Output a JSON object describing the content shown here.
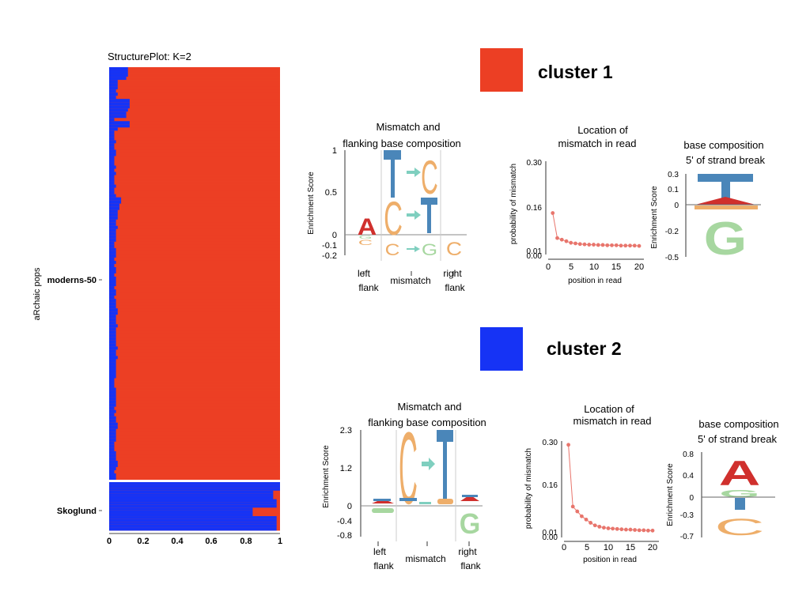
{
  "colors": {
    "red": "#ec3f24",
    "blue": "#1633f5",
    "teal": "#7fcfbf",
    "blueLogo": "#4a86b9",
    "orange": "#eeae6a",
    "green": "#a7d7a0",
    "logoRed": "#d0302d",
    "dot": "#e8756c"
  },
  "structure": {
    "title": "StructurePlot: K=2",
    "ylabel": "aRchaic pops",
    "groups": [
      "moderns-50",
      "Skoglund"
    ],
    "xticks": [
      "0",
      "0.2",
      "0.4",
      "0.6",
      "0.8",
      "1"
    ]
  },
  "clusters": [
    {
      "label": "cluster 1",
      "color": "#ec3f24"
    },
    {
      "label": "cluster 2",
      "color": "#1633f5"
    }
  ],
  "mismatch_panels": [
    {
      "title1": "Mismatch and",
      "title2": "flanking base composition",
      "ylabel": "Enrichment Score",
      "yticks": [
        "1",
        "0.5",
        "0",
        "-0.1",
        "-0.2"
      ],
      "xlabels": [
        "left",
        "flank",
        "mismatch",
        "right",
        "flank"
      ],
      "logos": [
        "A",
        "C",
        "C",
        "T",
        "C",
        "G",
        "C",
        "C",
        "G"
      ]
    },
    {
      "title1": "Mismatch and",
      "title2": "flanking base composition",
      "ylabel": "Enrichment Score",
      "yticks": [
        "2.3",
        "1.2",
        "0",
        "-0.4",
        "-0.8"
      ],
      "xlabels": [
        "left",
        "flank",
        "mismatch",
        "right",
        "flank"
      ],
      "logos": [
        "C",
        "G",
        "G"
      ]
    }
  ],
  "location_panels": [
    {
      "title1": "Location of",
      "title2": "mismatch in read",
      "ylabel": "probability of mismatch",
      "xlabel": "position in read",
      "yticks": [
        "0.30",
        "0.16",
        "0.01",
        "0.00"
      ],
      "xticks": [
        "0",
        "5",
        "10",
        "15",
        "20"
      ]
    },
    {
      "title1": "Location of",
      "title2": "mismatch in read",
      "ylabel": "probability of mismatch",
      "xlabel": "position in read",
      "yticks": [
        "0.30",
        "0.16",
        "0.01",
        "0.00"
      ],
      "xticks": [
        "0",
        "5",
        "10",
        "15",
        "20"
      ]
    }
  ],
  "base_panels": [
    {
      "title1": "base composition",
      "title2": "5' of  strand break",
      "ylabel": "Enrichment Score",
      "yticks": [
        "0.3",
        "0.1",
        "0",
        "-0.2",
        "-0.5"
      ],
      "logos": [
        "T",
        "G"
      ]
    },
    {
      "title1": "base composition",
      "title2": "5' of  strand break",
      "ylabel": "Enrichment Score",
      "yticks": [
        "0.8",
        "0.4",
        "0",
        "-0.3",
        "-0.7"
      ],
      "logos": [
        "A",
        "G",
        "C"
      ]
    }
  ],
  "chart_data": [
    {
      "type": "bar",
      "title": "StructurePlot: K=2",
      "orientation": "horizontal-stacked",
      "xlim": [
        0,
        1
      ],
      "groups": [
        {
          "name": "moderns-50",
          "cluster2_fraction": [
            0.11,
            0.11,
            0.11,
            0.1,
            0.05,
            0.05,
            0.05,
            0.04,
            0.05,
            0.04,
            0.12,
            0.12,
            0.12,
            0.11,
            0.1,
            0.1,
            0.03,
            0.12,
            0.12,
            0.05,
            0.03,
            0.03,
            0.03,
            0.04,
            0.03,
            0.03,
            0.04,
            0.04,
            0.03,
            0.03,
            0.03,
            0.04,
            0.03,
            0.04,
            0.03,
            0.03,
            0.03,
            0.04,
            0.03,
            0.03,
            0.04,
            0.07,
            0.07,
            0.06,
            0.06,
            0.05,
            0.05,
            0.05,
            0.04,
            0.04,
            0.05,
            0.04,
            0.04,
            0.04,
            0.04,
            0.03,
            0.03,
            0.04,
            0.04,
            0.04,
            0.03,
            0.04,
            0.03,
            0.04,
            0.04,
            0.03,
            0.04,
            0.04,
            0.04,
            0.03,
            0.04,
            0.04,
            0.03,
            0.04,
            0.04,
            0.04,
            0.05,
            0.05,
            0.04,
            0.04,
            0.04,
            0.05,
            0.04,
            0.04,
            0.04,
            0.04,
            0.04,
            0.04,
            0.05,
            0.04,
            0.04,
            0.05,
            0.04,
            0.04,
            0.04,
            0.04,
            0.04,
            0.04,
            0.03,
            0.03,
            0.03,
            0.04,
            0.04,
            0.04,
            0.04,
            0.04,
            0.04,
            0.03,
            0.04,
            0.03,
            0.04,
            0.04,
            0.05,
            0.05,
            0.04,
            0.04,
            0.04,
            0.04,
            0.03,
            0.03,
            0.03,
            0.04,
            0.04,
            0.04,
            0.05,
            0.05,
            0.04,
            0.03,
            0.04,
            0.04
          ]
        },
        {
          "name": "Skoglund",
          "cluster2_fraction": [
            1,
            1,
            1,
            0.96,
            0.96,
            0.96,
            0.98,
            0.98,
            0.98,
            0.84,
            0.84,
            0.84,
            0.98,
            0.98,
            0.98,
            0.98,
            0.98
          ]
        }
      ]
    },
    {
      "type": "line",
      "title": "Location of mismatch in read (cluster 1)",
      "xlabel": "position in read",
      "ylabel": "probability of mismatch",
      "ylim": [
        0,
        0.3
      ],
      "x": [
        1,
        2,
        3,
        4,
        5,
        6,
        7,
        8,
        9,
        10,
        11,
        12,
        13,
        14,
        15,
        16,
        17,
        18,
        19,
        20
      ],
      "y": [
        0.14,
        0.06,
        0.055,
        0.05,
        0.045,
        0.043,
        0.041,
        0.04,
        0.039,
        0.039,
        0.038,
        0.038,
        0.037,
        0.037,
        0.037,
        0.036,
        0.036,
        0.036,
        0.036,
        0.035
      ]
    },
    {
      "type": "line",
      "title": "Location of mismatch in read (cluster 2)",
      "xlabel": "position in read",
      "ylabel": "probability of mismatch",
      "ylim": [
        0,
        0.3
      ],
      "x": [
        1,
        2,
        3,
        4,
        5,
        6,
        7,
        8,
        9,
        10,
        11,
        12,
        13,
        14,
        15,
        16,
        17,
        18,
        19,
        20
      ],
      "y": [
        0.29,
        0.1,
        0.085,
        0.07,
        0.06,
        0.05,
        0.042,
        0.038,
        0.035,
        0.033,
        0.032,
        0.031,
        0.03,
        0.029,
        0.029,
        0.028,
        0.027,
        0.027,
        0.026,
        0.026
      ]
    }
  ]
}
